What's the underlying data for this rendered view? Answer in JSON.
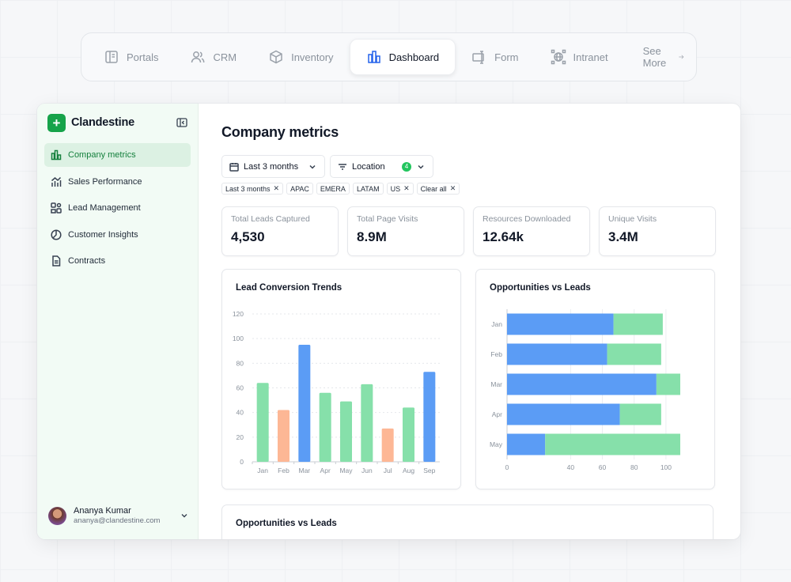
{
  "topnav": {
    "items": [
      {
        "label": "Portals",
        "icon": "portal-icon"
      },
      {
        "label": "CRM",
        "icon": "users-icon"
      },
      {
        "label": "Inventory",
        "icon": "box-icon"
      },
      {
        "label": "Dashboard",
        "icon": "chart-icon",
        "active": true
      },
      {
        "label": "Form",
        "icon": "form-icon"
      },
      {
        "label": "Intranet",
        "icon": "network-icon"
      }
    ],
    "more_label": "See More"
  },
  "brand": {
    "name": "Clandestine",
    "accent": "#16a34a"
  },
  "sidebar": {
    "items": [
      {
        "label": "Company metrics",
        "active": true
      },
      {
        "label": "Sales Performance"
      },
      {
        "label": "Lead Management"
      },
      {
        "label": "Customer Insights"
      },
      {
        "label": "Contracts"
      }
    ],
    "user": {
      "name": "Ananya Kumar",
      "email": "ananya@clandestine.com"
    }
  },
  "main": {
    "title": "Company metrics",
    "filters": {
      "date": "Last 3 months",
      "location": "Location",
      "location_count": "4"
    },
    "chips": [
      "Last 3 months",
      "APAC",
      "EMERA",
      "LATAM",
      "US",
      "Clear all"
    ],
    "kpis": [
      {
        "label": "Total Leads Captured",
        "value": "4,530"
      },
      {
        "label": "Total Page Visits",
        "value": "8.9M"
      },
      {
        "label": "Resources Downloaded",
        "value": "12.64k"
      },
      {
        "label": "Unique Visits",
        "value": "3.4M"
      }
    ],
    "bottom_card_title": "Opportunities vs Leads"
  },
  "chart_data": [
    {
      "type": "bar",
      "title": "Lead Conversion Trends",
      "categories": [
        "Jan",
        "Feb",
        "Mar",
        "Apr",
        "May",
        "Jun",
        "Jul",
        "Aug",
        "Sep"
      ],
      "values": [
        64,
        42,
        95,
        56,
        49,
        63,
        27,
        44,
        73
      ],
      "colors": [
        "#86e0aa",
        "#fdb795",
        "#5b9cf5",
        "#86e0aa",
        "#86e0aa",
        "#86e0aa",
        "#fdb795",
        "#86e0aa",
        "#5b9cf5"
      ],
      "ylim": [
        0,
        120
      ],
      "yticks": [
        0,
        20,
        40,
        60,
        80,
        100,
        120
      ],
      "grid": true
    },
    {
      "type": "bar",
      "orientation": "horizontal",
      "stacked": true,
      "title": "Opportunities vs Leads",
      "categories": [
        "Jan",
        "Feb",
        "Mar",
        "Apr",
        "May"
      ],
      "series": [
        {
          "values": [
            67,
            63,
            94,
            71,
            24
          ],
          "color": "#5b9cf5"
        },
        {
          "values": [
            31,
            34,
            15,
            26,
            85
          ],
          "color": "#86e0aa"
        }
      ],
      "xlim": [
        0,
        110
      ],
      "xticks": [
        0,
        40,
        60,
        80,
        100
      ],
      "grid": true
    }
  ]
}
